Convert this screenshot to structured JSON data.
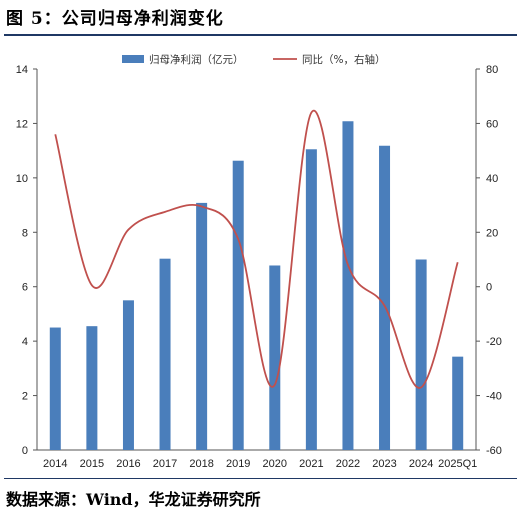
{
  "figure": {
    "title": "图 5：公司归母净利润变化",
    "source": "数据来源：Wind，华龙证券研究所"
  },
  "colors": {
    "bar": "#4a7ebb",
    "line": "#c0504d",
    "title_rule": "#1f3864"
  },
  "chart_data": {
    "type": "bar",
    "categories": [
      "2014",
      "2015",
      "2016",
      "2017",
      "2018",
      "2019",
      "2020",
      "2021",
      "2022",
      "2023",
      "2024",
      "2025Q1"
    ],
    "series": [
      {
        "name": "归母净利润（亿元）",
        "type": "bar",
        "axis": "left",
        "values": [
          4.5,
          4.55,
          5.5,
          7.03,
          9.08,
          10.63,
          6.78,
          11.05,
          12.08,
          11.18,
          7.0,
          3.43
        ]
      },
      {
        "name": "同比（%，右轴）",
        "type": "line",
        "axis": "right",
        "values": [
          56,
          0.5,
          21,
          27.5,
          29.5,
          17.5,
          -36,
          64,
          8,
          -7,
          -37,
          9
        ]
      }
    ],
    "y_left": {
      "range": [
        0,
        14
      ],
      "ticks": [
        "0",
        "2",
        "4",
        "6",
        "8",
        "10",
        "12",
        "14"
      ]
    },
    "y_right": {
      "range": [
        -60,
        80
      ],
      "ticks": [
        "-60",
        "-40",
        "-20",
        "0",
        "20",
        "40",
        "60",
        "80"
      ]
    },
    "legend_position": "top",
    "grid": false
  }
}
